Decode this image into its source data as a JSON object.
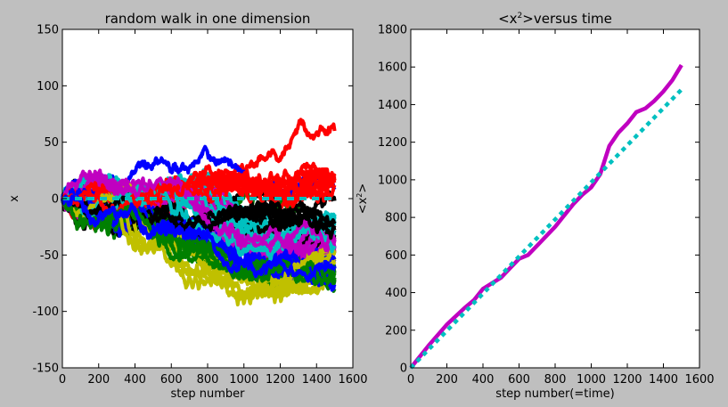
{
  "chart_data": [
    {
      "type": "line",
      "title": "random walk in one dimension",
      "xlabel": "step number",
      "ylabel": "x",
      "xlim": [
        0,
        1600
      ],
      "ylim": [
        -150,
        150
      ],
      "xticks": [
        "0",
        "200",
        "400",
        "600",
        "800",
        "1000",
        "1200",
        "1400",
        "1600"
      ],
      "yticks": [
        "-150",
        "-100",
        "-50",
        "0",
        "50",
        "100",
        "150"
      ],
      "grid": false,
      "steps": 1500,
      "walker_count": 60,
      "series_colors": [
        "#000000",
        "#ff0000",
        "#008000",
        "#0000ff",
        "#c0c000",
        "#00c0c0",
        "#c000c0"
      ],
      "mean_line": {
        "y": 0,
        "color": "#00c0c0",
        "style": "dashed"
      }
    },
    {
      "type": "line",
      "title": "<x²>versus time",
      "title_main": "<x",
      "title_sup": "2",
      "title_rest": ">versus time",
      "xlabel": "step number(=time)",
      "ylabel": "<x²>",
      "ylabel_main": "<x",
      "ylabel_sup": "2",
      "ylabel_rest": ">",
      "xlim": [
        0,
        1600
      ],
      "ylim": [
        0,
        1800
      ],
      "xticks": [
        "0",
        "200",
        "400",
        "600",
        "800",
        "1000",
        "1200",
        "1400",
        "1600"
      ],
      "yticks": [
        "0",
        "200",
        "400",
        "600",
        "800",
        "1000",
        "1200",
        "1400",
        "1600",
        "1800"
      ],
      "grid": false,
      "series": [
        {
          "color": "#c000c0",
          "style": "solid",
          "x": [
            0,
            100,
            200,
            300,
            350,
            400,
            450,
            500,
            550,
            600,
            650,
            700,
            750,
            800,
            850,
            900,
            950,
            1000,
            1050,
            1100,
            1150,
            1200,
            1250,
            1300,
            1350,
            1400,
            1450,
            1500
          ],
          "y": [
            0,
            120,
            230,
            320,
            360,
            420,
            450,
            480,
            530,
            580,
            600,
            650,
            700,
            750,
            810,
            870,
            920,
            960,
            1030,
            1180,
            1250,
            1300,
            1360,
            1380,
            1420,
            1470,
            1530,
            1610
          ]
        },
        {
          "color": "#00c0c0",
          "style": "dashed",
          "x": [
            0,
            1500
          ],
          "y": [
            0,
            1480
          ]
        }
      ]
    }
  ]
}
